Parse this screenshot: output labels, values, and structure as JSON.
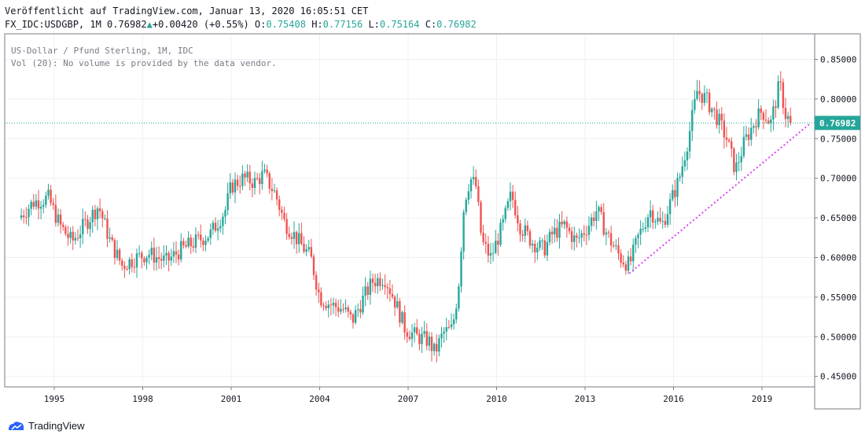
{
  "header": {
    "published": "Veröffentlicht auf TradingView.com, Januar 13, 2020 16:05:51 CET",
    "symbol_line": "FX_IDC:USDGBP, 1M 0.76982",
    "change": "+0.00420 (+0.55%)",
    "o_label": "O:",
    "o_value": "0.75408",
    "h_label": "H:",
    "h_value": "0.77156",
    "l_label": "L:",
    "l_value": "0.75164",
    "c_label": "C:",
    "c_value": "0.76982"
  },
  "legend": {
    "line1": "US-Dollar / Pfund Sterling, 1M, IDC",
    "line2": "Vol (20): No volume is provided by the data vendor."
  },
  "watermark": "TradingView",
  "colors": {
    "up": "#26a69a",
    "down": "#ef5350",
    "trendline": "#e040fb",
    "price_line": "#26a69a"
  },
  "chart_data": {
    "type": "candlestick",
    "interval": "1M",
    "x_range": [
      1993.8,
      2021.0
    ],
    "ylim": [
      0.44,
      0.89
    ],
    "y_ticks": [
      "0.45000",
      "0.50000",
      "0.55000",
      "0.60000",
      "0.65000",
      "0.70000",
      "0.75000",
      "0.80000",
      "0.85000"
    ],
    "x_ticks": [
      "1995",
      "1998",
      "2001",
      "2004",
      "2007",
      "2010",
      "2013",
      "2016",
      "2019"
    ],
    "last_price": "0.76982",
    "trendline": {
      "from": {
        "x": 2014.5,
        "y": 0.58
      },
      "to": {
        "x": 2020.6,
        "y": 0.768
      }
    },
    "close_path": [
      [
        1993.8,
        0.65
      ],
      [
        1994.3,
        0.67
      ],
      [
        1994.8,
        0.675
      ],
      [
        1995.2,
        0.64
      ],
      [
        1995.6,
        0.62
      ],
      [
        1996.0,
        0.64
      ],
      [
        1996.5,
        0.665
      ],
      [
        1996.9,
        0.62
      ],
      [
        1997.3,
        0.59
      ],
      [
        1997.8,
        0.6
      ],
      [
        1998.2,
        0.605
      ],
      [
        1998.8,
        0.595
      ],
      [
        1999.3,
        0.61
      ],
      [
        1999.8,
        0.62
      ],
      [
        2000.3,
        0.63
      ],
      [
        2000.8,
        0.66
      ],
      [
        2001.0,
        0.69
      ],
      [
        2001.4,
        0.7
      ],
      [
        2001.8,
        0.695
      ],
      [
        2002.1,
        0.705
      ],
      [
        2002.5,
        0.68
      ],
      [
        2002.8,
        0.645
      ],
      [
        2003.3,
        0.62
      ],
      [
        2003.7,
        0.6
      ],
      [
        2004.0,
        0.55
      ],
      [
        2004.4,
        0.54
      ],
      [
        2004.8,
        0.535
      ],
      [
        2005.1,
        0.52
      ],
      [
        2005.5,
        0.55
      ],
      [
        2005.8,
        0.57
      ],
      [
        2006.2,
        0.575
      ],
      [
        2006.5,
        0.55
      ],
      [
        2006.9,
        0.51
      ],
      [
        2007.3,
        0.5
      ],
      [
        2007.7,
        0.495
      ],
      [
        2007.9,
        0.48
      ],
      [
        2008.2,
        0.505
      ],
      [
        2008.5,
        0.51
      ],
      [
        2008.7,
        0.56
      ],
      [
        2008.9,
        0.67
      ],
      [
        2009.1,
        0.7
      ],
      [
        2009.3,
        0.69
      ],
      [
        2009.5,
        0.62
      ],
      [
        2009.8,
        0.6
      ],
      [
        2010.2,
        0.64
      ],
      [
        2010.5,
        0.68
      ],
      [
        2010.8,
        0.64
      ],
      [
        2011.2,
        0.62
      ],
      [
        2011.6,
        0.61
      ],
      [
        2011.9,
        0.63
      ],
      [
        2012.3,
        0.64
      ],
      [
        2012.7,
        0.62
      ],
      [
        2013.1,
        0.64
      ],
      [
        2013.4,
        0.66
      ],
      [
        2013.8,
        0.625
      ],
      [
        2014.2,
        0.6
      ],
      [
        2014.5,
        0.59
      ],
      [
        2014.8,
        0.625
      ],
      [
        2015.2,
        0.66
      ],
      [
        2015.6,
        0.64
      ],
      [
        2015.9,
        0.67
      ],
      [
        2016.2,
        0.7
      ],
      [
        2016.5,
        0.75
      ],
      [
        2016.8,
        0.81
      ],
      [
        2017.1,
        0.8
      ],
      [
        2017.5,
        0.775
      ],
      [
        2017.8,
        0.75
      ],
      [
        2018.1,
        0.71
      ],
      [
        2018.4,
        0.745
      ],
      [
        2018.8,
        0.775
      ],
      [
        2019.0,
        0.785
      ],
      [
        2019.3,
        0.77
      ],
      [
        2019.6,
        0.82
      ],
      [
        2019.8,
        0.78
      ],
      [
        2020.0,
        0.7698
      ]
    ]
  }
}
